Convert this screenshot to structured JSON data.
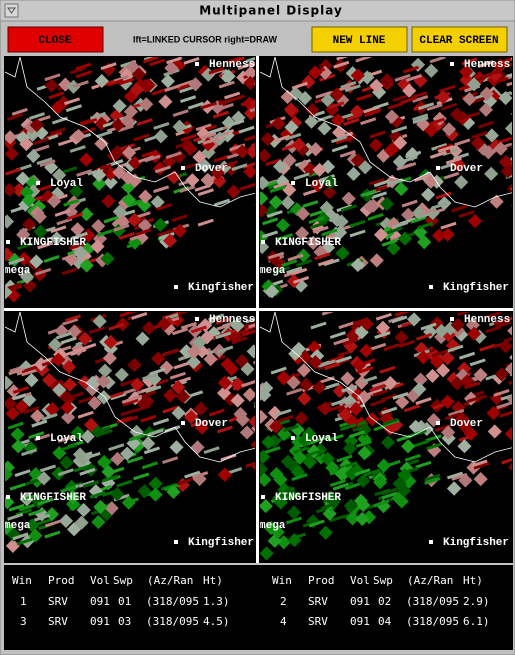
{
  "window": {
    "title": "Multipanel Display"
  },
  "toolbar": {
    "close": "CLOSE",
    "hint": "lft=LINKED CURSOR  right=DRAW",
    "new_line": "NEW LINE",
    "clear_screen": "CLEAR SCREEN"
  },
  "panels": [
    {
      "labels": [
        "Henness",
        "Dover",
        "Loyal",
        "KINGFISHER",
        "mega",
        "Kingfisher"
      ]
    },
    {
      "labels": [
        "Henness",
        "Dover",
        "Loyal",
        "KINGFISHER",
        "mega",
        "Kingfisher"
      ]
    },
    {
      "labels": [
        "Henness",
        "Dover",
        "Loyal",
        "KINGFISHER",
        "mega",
        "Kingfisher"
      ]
    },
    {
      "labels": [
        "Henness",
        "Dover",
        "Loyal",
        "KINGFISHER",
        "mega",
        "Kingfisher"
      ]
    }
  ],
  "table": {
    "groups": [
      {
        "header": [
          "Win",
          "Prod",
          "Vol",
          "Swp",
          "(Az/Ran",
          "Ht)"
        ],
        "rows": [
          [
            "1",
            "SRV",
            "091",
            "01",
            "(318/095",
            "1.3)"
          ],
          [
            "3",
            "SRV",
            "091",
            "03",
            "(318/095",
            "4.5)"
          ]
        ]
      },
      {
        "header": [
          "Win",
          "Prod",
          "Vol",
          "Swp",
          "(Az/Ran",
          "Ht)"
        ],
        "rows": [
          [
            "2",
            "SRV",
            "091",
            "02",
            "(318/095",
            "2.9)"
          ],
          [
            "4",
            "SRV",
            "091",
            "04",
            "(318/095",
            "6.1)"
          ]
        ]
      }
    ]
  }
}
